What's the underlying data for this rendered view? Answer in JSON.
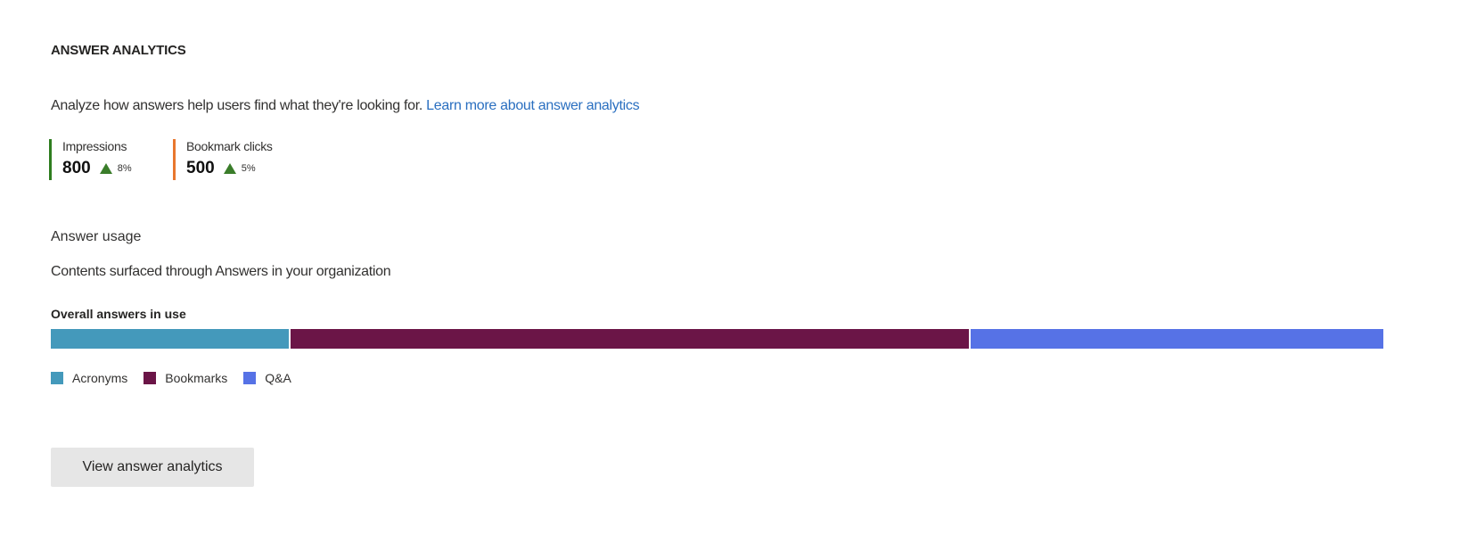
{
  "header": {
    "title": "ANSWER ANALYTICS",
    "description": "Analyze how answers help users find what they're looking for.",
    "learn_more_link": "Learn more about answer analytics"
  },
  "metrics": [
    {
      "label": "Impressions",
      "value": "800",
      "change": "8%",
      "trend": "up",
      "color": "#2e7d1f"
    },
    {
      "label": "Bookmark clicks",
      "value": "500",
      "change": "5%",
      "trend": "up",
      "color": "#e8772e"
    }
  ],
  "usage": {
    "heading": "Answer usage",
    "subheading": "Contents surfaced through Answers in your organization"
  },
  "chart_data": {
    "type": "bar",
    "orientation": "horizontal-stacked",
    "title": "Overall answers in use",
    "legend_position": "bottom-left",
    "series": [
      {
        "name": "Acronyms",
        "share_percent": 18,
        "color": "#4499bb"
      },
      {
        "name": "Bookmarks",
        "share_percent": 51,
        "color": "#6b1547"
      },
      {
        "name": "Q&A",
        "share_percent": 31,
        "color": "#5672e6"
      }
    ]
  },
  "actions": {
    "view_button": "View answer analytics"
  }
}
